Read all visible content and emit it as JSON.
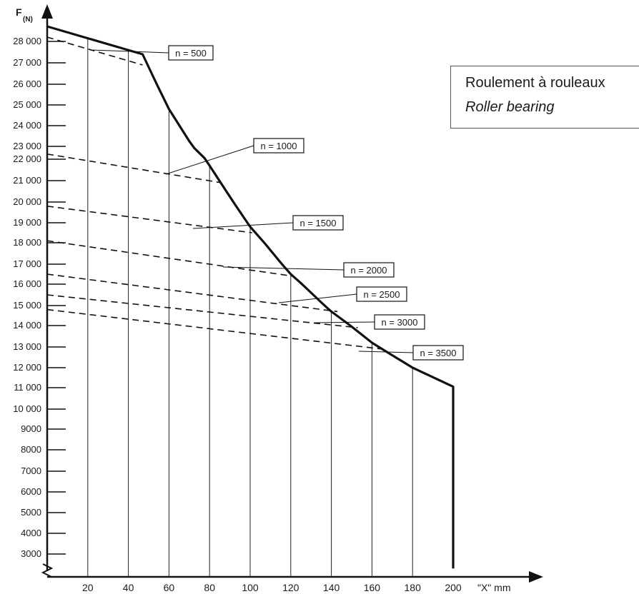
{
  "chart_data": {
    "type": "line",
    "ylabel": "F",
    "ylabel_sub": "(N)",
    "xlabel": "\"X\" mm",
    "x_ticks": [
      20,
      40,
      60,
      80,
      100,
      120,
      140,
      160,
      180,
      200
    ],
    "y_ticks": [
      {
        "v": 28000,
        "t": "28 000"
      },
      {
        "v": 27000,
        "t": "27 000"
      },
      {
        "v": 26000,
        "t": "26 000"
      },
      {
        "v": 25000,
        "t": "25 000"
      },
      {
        "v": 24000,
        "t": "24 000"
      },
      {
        "v": 23000,
        "t": "23 000"
      },
      {
        "v": 22000,
        "t": "22 000"
      },
      {
        "v": 21000,
        "t": "21 000"
      },
      {
        "v": 20000,
        "t": "20 000"
      },
      {
        "v": 19000,
        "t": "19 000"
      },
      {
        "v": 18000,
        "t": "18 000"
      },
      {
        "v": 17000,
        "t": "17 000"
      },
      {
        "v": 16000,
        "t": "16 000"
      },
      {
        "v": 15000,
        "t": "15 000"
      },
      {
        "v": 14000,
        "t": "14 000"
      },
      {
        "v": 13000,
        "t": "13 000"
      },
      {
        "v": 12000,
        "t": "12 000"
      },
      {
        "v": 11000,
        "t": "11 000"
      },
      {
        "v": 10000,
        "t": "10 000"
      },
      {
        "v": 9000,
        "t": "9000"
      },
      {
        "v": 8000,
        "t": "8000"
      },
      {
        "v": 7000,
        "t": "7000"
      },
      {
        "v": 6000,
        "t": "6000"
      },
      {
        "v": 5000,
        "t": "5000"
      },
      {
        "v": 4000,
        "t": "4000"
      },
      {
        "v": 3000,
        "t": "3000"
      }
    ],
    "xlim": [
      0,
      200
    ],
    "limit_curve": {
      "x": [
        0,
        47,
        60,
        80,
        100,
        120,
        140,
        160,
        180,
        200,
        200
      ],
      "y": [
        28700,
        27400,
        24800,
        21700,
        18800,
        16500,
        14700,
        13200,
        12000,
        11050,
        2300
      ]
    },
    "series": [
      {
        "name": "n = 500",
        "x": [
          0,
          47
        ],
        "y": [
          28200,
          26900
        ]
      },
      {
        "name": "n = 1000",
        "x": [
          0,
          86
        ],
        "y": [
          22400,
          20900
        ]
      },
      {
        "name": "n = 1500",
        "x": [
          0,
          101
        ],
        "y": [
          19800,
          18500
        ]
      },
      {
        "name": "n = 2000",
        "x": [
          0,
          121
        ],
        "y": [
          18100,
          16400
        ]
      },
      {
        "name": "n = 2500",
        "x": [
          0,
          143
        ],
        "y": [
          16500,
          14700
        ]
      },
      {
        "name": "n = 3000",
        "x": [
          0,
          153
        ],
        "y": [
          15500,
          13900
        ]
      },
      {
        "name": "n = 3500",
        "x": [
          0,
          165
        ],
        "y": [
          14800,
          12900
        ]
      }
    ],
    "title": ""
  },
  "legend_box": {
    "line1": "Roulement à rouleaux",
    "line2": "Roller bearing"
  }
}
